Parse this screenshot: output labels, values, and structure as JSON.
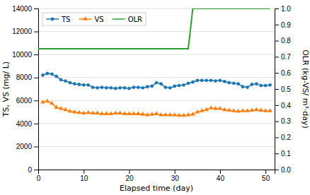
{
  "chart_data": {
    "type": "line",
    "xlabel": "Elapsed time (day)",
    "ylabel": "TS, VS (mg/ L)",
    "y2label": "OLR (kg-VS/ m³·day)",
    "series": [
      {
        "name": "TS",
        "marker": "circle",
        "x": [
          1,
          2,
          3,
          4,
          5,
          6,
          7,
          8,
          9,
          10,
          11,
          12,
          13,
          14,
          15,
          16,
          17,
          18,
          19,
          20,
          21,
          22,
          23,
          24,
          25,
          26,
          27,
          28,
          29,
          30,
          31,
          32,
          33,
          34,
          35,
          36,
          37,
          38,
          39,
          40,
          41,
          42,
          43,
          44,
          45,
          46,
          47,
          48,
          49,
          50,
          51
        ],
        "values": [
          8200,
          8350,
          8300,
          8100,
          7800,
          7700,
          7550,
          7450,
          7400,
          7350,
          7350,
          7150,
          7100,
          7150,
          7100,
          7100,
          7050,
          7100,
          7100,
          7050,
          7150,
          7150,
          7100,
          7200,
          7250,
          7550,
          7450,
          7150,
          7100,
          7250,
          7300,
          7350,
          7500,
          7600,
          7750,
          7750,
          7750,
          7750,
          7700,
          7750,
          7650,
          7550,
          7500,
          7450,
          7200,
          7150,
          7400,
          7450,
          7300,
          7300,
          7350
        ]
      },
      {
        "name": "VS",
        "marker": "triangle",
        "x": [
          1,
          2,
          3,
          4,
          5,
          6,
          7,
          8,
          9,
          10,
          11,
          12,
          13,
          14,
          15,
          16,
          17,
          18,
          19,
          20,
          21,
          22,
          23,
          24,
          25,
          26,
          27,
          28,
          29,
          30,
          31,
          32,
          33,
          34,
          35,
          36,
          37,
          38,
          39,
          40,
          41,
          42,
          43,
          44,
          45,
          46,
          47,
          48,
          49,
          50,
          51
        ],
        "values": [
          5850,
          5950,
          5750,
          5400,
          5300,
          5200,
          5050,
          5000,
          4950,
          4900,
          4950,
          4900,
          4900,
          4850,
          4850,
          4850,
          4900,
          4900,
          4850,
          4850,
          4850,
          4850,
          4800,
          4750,
          4800,
          4850,
          4750,
          4750,
          4750,
          4750,
          4700,
          4700,
          4750,
          4800,
          5000,
          5100,
          5200,
          5350,
          5300,
          5300,
          5200,
          5150,
          5100,
          5050,
          5100,
          5100,
          5150,
          5200,
          5150,
          5100,
          5100
        ]
      },
      {
        "name": "OLR",
        "axis": "y2",
        "x": [
          0,
          1,
          33,
          34,
          51
        ],
        "values": [
          0.75,
          0.75,
          0.75,
          1.0,
          1.0
        ]
      }
    ],
    "xlim": [
      0,
      52
    ],
    "xticks": [
      0,
      10,
      20,
      30,
      40,
      50
    ],
    "ylim": [
      0,
      14000
    ],
    "yticks": [
      0,
      2000,
      4000,
      6000,
      8000,
      10000,
      12000,
      14000
    ],
    "y2lim": [
      0,
      1.0
    ],
    "y2ticks": [
      {
        "value": 0,
        "label": "0.0"
      },
      0.1,
      0.2,
      0.3,
      0.4,
      0.5,
      0.6,
      0.7,
      0.8,
      0.9,
      {
        "value": 1.0,
        "label": "1.0"
      }
    ],
    "grid": true,
    "legend": "upper left"
  }
}
